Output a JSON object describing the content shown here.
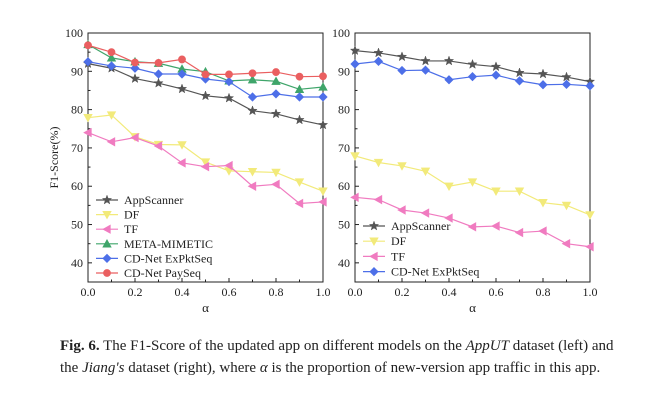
{
  "chart_data": [
    {
      "type": "line",
      "title": "",
      "xlabel": "α",
      "ylabel": "F1-Score(%)",
      "xlim": [
        0.0,
        1.0
      ],
      "ylim": [
        35,
        100
      ],
      "x": [
        0.0,
        0.1,
        0.2,
        0.3,
        0.4,
        0.5,
        0.6,
        0.7,
        0.8,
        0.9,
        1.0
      ],
      "xticks": [
        0.0,
        0.2,
        0.4,
        0.6,
        0.8,
        1.0
      ],
      "yticks": [
        40,
        50,
        60,
        70,
        80,
        90,
        100
      ],
      "legend_position": "bottom-left",
      "series": [
        {
          "name": "AppScanner",
          "marker": "star",
          "color": "#555555",
          "values": [
            92.0,
            90.8,
            88.1,
            86.9,
            85.4,
            83.6,
            83.0,
            79.7,
            78.9,
            77.3,
            76.0
          ]
        },
        {
          "name": "DF",
          "marker": "triangle-down",
          "color": "#f2ea7a",
          "values": [
            77.9,
            78.6,
            72.9,
            70.9,
            70.8,
            66.3,
            64.0,
            63.8,
            63.6,
            61.1,
            58.7
          ]
        },
        {
          "name": "TF",
          "marker": "triangle-left",
          "color": "#f07bc0",
          "values": [
            74.0,
            71.6,
            72.7,
            70.5,
            66.1,
            65.1,
            65.4,
            60.0,
            60.5,
            55.5,
            55.9
          ]
        },
        {
          "name": "META-MIMETIC",
          "marker": "triangle-up",
          "color": "#3fa56a",
          "values": [
            97.0,
            93.5,
            92.5,
            92.1,
            90.6,
            89.9,
            87.5,
            87.8,
            87.4,
            85.3,
            85.9
          ]
        },
        {
          "name": "CD-Net ExPktSeq",
          "marker": "diamond",
          "color": "#4d6fe8",
          "values": [
            92.5,
            91.4,
            90.8,
            89.3,
            89.3,
            88.0,
            87.3,
            83.3,
            84.1,
            83.3,
            83.3
          ]
        },
        {
          "name": "CD-Net PaySeq",
          "marker": "circle",
          "color": "#ea5f60",
          "values": [
            96.8,
            95.0,
            92.3,
            92.2,
            93.1,
            89.2,
            89.2,
            89.5,
            89.8,
            88.6,
            88.7
          ]
        }
      ]
    },
    {
      "type": "line",
      "title": "",
      "xlabel": "α",
      "ylabel": "",
      "xlim": [
        0.0,
        1.0
      ],
      "ylim": [
        35,
        100
      ],
      "x": [
        0.0,
        0.1,
        0.2,
        0.3,
        0.4,
        0.5,
        0.6,
        0.7,
        0.8,
        0.9,
        1.0
      ],
      "xticks": [
        0.0,
        0.2,
        0.4,
        0.6,
        0.8,
        1.0
      ],
      "yticks": [
        40,
        50,
        60,
        70,
        80,
        90,
        100
      ],
      "legend_position": "bottom-left",
      "series": [
        {
          "name": "AppScanner",
          "marker": "star",
          "color": "#555555",
          "values": [
            95.4,
            94.8,
            93.8,
            92.7,
            92.7,
            91.8,
            91.2,
            89.6,
            89.3,
            88.5,
            87.3
          ]
        },
        {
          "name": "DF",
          "marker": "triangle-down",
          "color": "#f2ea7a",
          "values": [
            67.9,
            66.2,
            65.3,
            63.9,
            60.0,
            61.1,
            58.7,
            58.7,
            55.7,
            55.0,
            52.5
          ]
        },
        {
          "name": "TF",
          "marker": "triangle-left",
          "color": "#f07bc0",
          "values": [
            57.1,
            56.5,
            53.8,
            53.0,
            51.7,
            49.4,
            49.6,
            47.9,
            48.3,
            45.0,
            44.2
          ]
        },
        {
          "name": "CD-Net ExPktSeq",
          "marker": "diamond",
          "color": "#4d6fe8",
          "values": [
            91.9,
            92.6,
            90.2,
            90.3,
            87.8,
            88.6,
            89.0,
            87.5,
            86.5,
            86.6,
            86.2
          ]
        }
      ]
    }
  ],
  "caption": {
    "label": "Fig. 6.",
    "part1": " The F1-Score of the updated app on different models on the ",
    "dataset1": "AppUT",
    "part2": " dataset (left) and the ",
    "dataset2": "Jiang's",
    "part3": " dataset (right), where ",
    "alpha": "α",
    "part4": " is the proportion of new-version app traffic in this app."
  }
}
